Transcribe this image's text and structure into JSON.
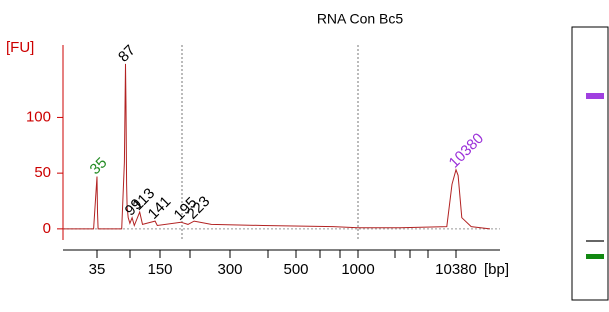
{
  "chart_data": {
    "type": "line",
    "title": "RNA Con Bc5",
    "y_label": "[FU]",
    "x_label": "[bp]",
    "x": [
      25,
      34,
      35,
      36,
      37,
      80,
      85,
      87,
      88,
      89,
      90,
      92,
      95,
      99,
      103,
      113,
      118,
      141,
      145,
      195,
      210,
      223,
      260,
      400,
      800,
      1000,
      5000,
      9500,
      10000,
      10380,
      10600,
      11000,
      12000,
      14000
    ],
    "values": [
      0,
      0,
      47,
      15,
      0,
      0,
      60,
      148,
      110,
      40,
      20,
      10,
      5,
      10,
      3,
      15,
      4,
      7,
      3,
      6,
      4,
      7,
      4,
      3,
      2,
      1,
      1,
      2,
      40,
      53,
      48,
      10,
      2,
      0
    ],
    "color": "#b22222",
    "xlim": [
      25,
      14000
    ],
    "xticks": [
      35,
      150,
      300,
      500,
      1000,
      10380
    ],
    "ylim": [
      -10,
      165
    ],
    "yticks": [
      0,
      50,
      100
    ],
    "peaks": [
      {
        "x": 35,
        "y": 47,
        "color": "#228b22"
      },
      {
        "x": 87,
        "y": 148,
        "color": "#000000"
      },
      {
        "x": 99,
        "y": 10,
        "color": "#000000"
      },
      {
        "x": 113,
        "y": 15,
        "color": "#000000"
      },
      {
        "x": 141,
        "y": 7,
        "color": "#000000"
      },
      {
        "x": 195,
        "y": 6,
        "color": "#000000"
      },
      {
        "x": 223,
        "y": 7,
        "color": "#000000"
      },
      {
        "x": 10380,
        "y": 53,
        "color": "#9b30d9"
      }
    ]
  }
}
